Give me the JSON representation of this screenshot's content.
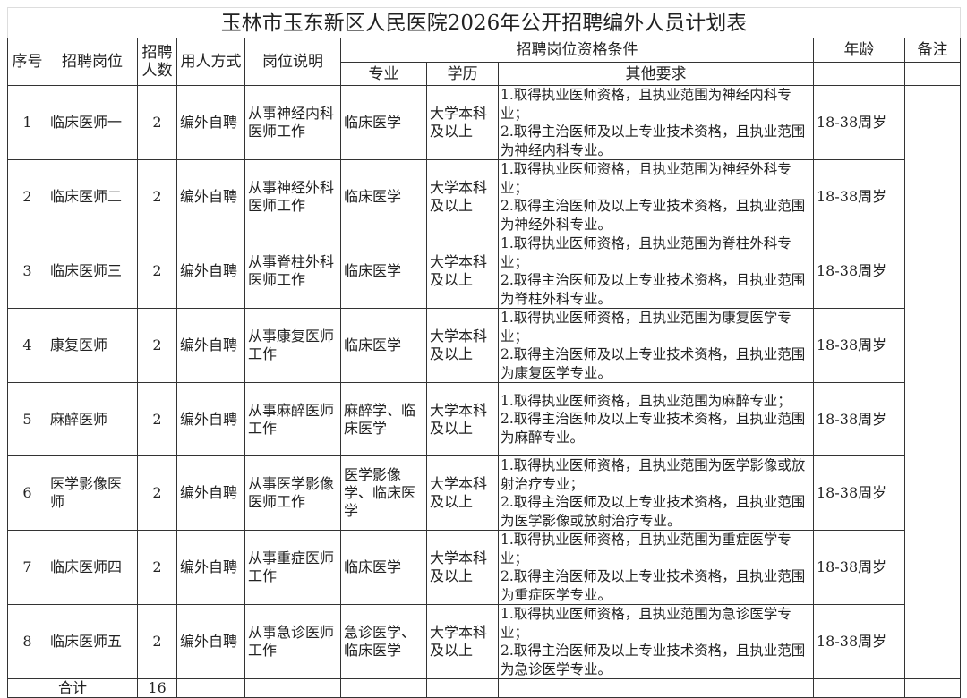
{
  "title": "玉林市玉东新区人民医院2026年公开招聘编外人员计划表",
  "headers": {
    "no": "序号",
    "position": "招聘岗位",
    "count": "招聘人数",
    "method": "用人方式",
    "desc": "岗位说明",
    "qual": "招聘岗位资格条件",
    "major": "专业",
    "edu": "学历",
    "other": "其他要求",
    "age": "年龄",
    "note": "备注"
  },
  "rows": [
    {
      "no": "1",
      "position": "临床医师一",
      "count": "2",
      "method": "编外自聘",
      "desc": "从事神经内科医师工作",
      "major": "临床医学",
      "edu": "大学本科及以上",
      "req1": "1.取得执业医师资格，且执业范围为神经内科专业；",
      "req2": "2.取得主治医师及以上专业技术资格，且执业范围为神经内科专业。",
      "age": "18-38周岁"
    },
    {
      "no": "2",
      "position": "临床医师二",
      "count": "2",
      "method": "编外自聘",
      "desc": "从事神经外科医师工作",
      "major": "临床医学",
      "edu": "大学本科及以上",
      "req1": "1.取得执业医师资格，且执业范围为神经外科专业；",
      "req2": "2.取得主治医师及以上专业技术资格，且执业范围为神经外科专业。",
      "age": "18-38周岁"
    },
    {
      "no": "3",
      "position": "临床医师三",
      "count": "2",
      "method": "编外自聘",
      "desc": "从事脊柱外科医师工作",
      "major": "临床医学",
      "edu": "大学本科及以上",
      "req1": "1.取得执业医师资格，且执业范围为脊柱外科专业；",
      "req2": "2.取得主治医师及以上专业技术资格，且执业范围为脊柱外科专业。",
      "age": "18-38周岁"
    },
    {
      "no": "4",
      "position": "康复医师",
      "count": "2",
      "method": "编外自聘",
      "desc": "从事康复医师工作",
      "major": "临床医学",
      "edu": "大学本科及以上",
      "req1": "1.取得执业医师资格，且执业范围为康复医学专业；",
      "req2": "2.取得主治医师及以上专业技术资格，且执业范围为康复医学专业。",
      "age": "18-38周岁"
    },
    {
      "no": "5",
      "position": "麻醉医师",
      "count": "2",
      "method": "编外自聘",
      "desc": "从事麻醉医师工作",
      "major": "麻醉学、临床医学",
      "edu": "大学本科及以上",
      "req1": "1.取得执业医师资格，且执业范围为麻醉专业；",
      "req2": "2.取得主治医师及以上专业技术资格，且执业范围为麻醉专业。",
      "age": "18-38周岁"
    },
    {
      "no": "6",
      "position": "医学影像医师",
      "count": "2",
      "method": "编外自聘",
      "desc": "从事医学影像医师工作",
      "major": "医学影像学、临床医学",
      "edu": "大学本科及以上",
      "req1": "1.取得执业医师资格，且执业范围为医学影像或放射治疗专业；",
      "req2": "2.取得主治医师及以上专业技术资格，且执业范围为医学影像或放射治疗专业。",
      "age": "18-38周岁"
    },
    {
      "no": "7",
      "position": "临床医师四",
      "count": "2",
      "method": "编外自聘",
      "desc": "从事重症医师工作",
      "major": "临床医学",
      "edu": "大学本科及以上",
      "req1": "1.取得执业医师资格，且执业范围为重症医学专业；",
      "req2": "2.取得主治医师及以上专业技术资格，且执业范围为重症医学专业。",
      "age": "18-38周岁"
    },
    {
      "no": "8",
      "position": "临床医师五",
      "count": "2",
      "method": "编外自聘",
      "desc": "从事急诊医师工作",
      "major": "急诊医学、临床医学",
      "edu": "大学本科及以上",
      "req1": "1.取得执业医师资格，且执业范围为急诊医学专业；",
      "req2": "2.取得主治医师及以上专业技术资格，且执业范围为急诊医学专业。",
      "age": "18-38周岁"
    }
  ],
  "total": {
    "label": "合计",
    "count": "16"
  }
}
